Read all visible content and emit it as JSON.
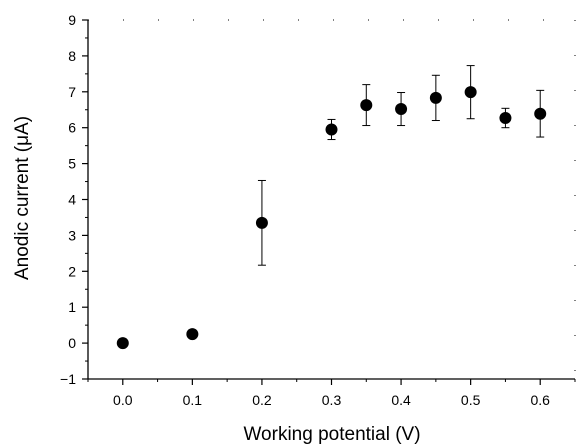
{
  "chart_data": {
    "type": "scatter",
    "title": "",
    "xlabel": "Working potential (V)",
    "ylabel": "Anodic current (μA)",
    "xlim": [
      -0.05,
      0.65
    ],
    "ylim": [
      -1,
      9
    ],
    "xticks": [
      "0.0",
      "0.1",
      "0.2",
      "0.3",
      "0.4",
      "0.5",
      "0.6"
    ],
    "yticks": [
      "−1",
      "0",
      "1",
      "2",
      "3",
      "4",
      "5",
      "6",
      "7",
      "8",
      "9"
    ],
    "grid": false,
    "points": [
      {
        "x": 0.0,
        "y": 0.0,
        "err": 0
      },
      {
        "x": 0.1,
        "y": 0.25,
        "err": 0
      },
      {
        "x": 0.2,
        "y": 3.35,
        "err": 1.18
      },
      {
        "x": 0.3,
        "y": 5.95,
        "err": 0.28
      },
      {
        "x": 0.35,
        "y": 6.63,
        "err": 0.57
      },
      {
        "x": 0.4,
        "y": 6.52,
        "err": 0.46
      },
      {
        "x": 0.45,
        "y": 6.83,
        "err": 0.63
      },
      {
        "x": 0.5,
        "y": 6.99,
        "err": 0.74
      },
      {
        "x": 0.55,
        "y": 6.27,
        "err": 0.27
      },
      {
        "x": 0.6,
        "y": 6.39,
        "err": 0.65
      }
    ],
    "colors": {
      "marker": "#000000",
      "axis": "#000000"
    }
  }
}
